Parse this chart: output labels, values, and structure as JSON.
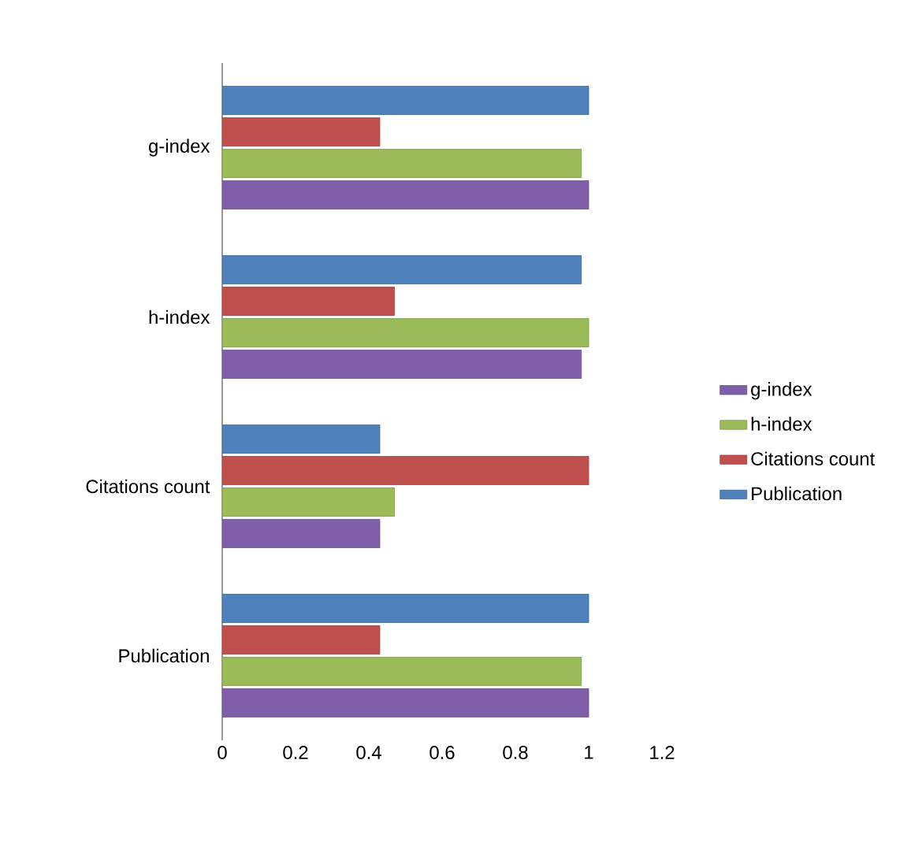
{
  "chart_data": {
    "type": "bar",
    "orientation": "horizontal",
    "categories": [
      "g-index",
      "h-index",
      "Citations count",
      "Publication"
    ],
    "series": [
      {
        "name": "g-index",
        "color": "#7f60a8",
        "values": [
          1,
          0.98,
          0.43,
          1
        ]
      },
      {
        "name": "h-index",
        "color": "#9bbb59",
        "values": [
          0.98,
          1,
          0.47,
          0.98
        ]
      },
      {
        "name": "Citations count",
        "color": "#c0504d",
        "values": [
          0.43,
          0.47,
          1,
          0.43
        ]
      },
      {
        "name": "Publication",
        "color": "#4f81bd",
        "values": [
          1,
          0.98,
          0.43,
          1
        ]
      }
    ],
    "xlim": [
      0,
      1.2
    ],
    "xticks": [
      0,
      0.2,
      0.4,
      0.6,
      0.8,
      1,
      1.2
    ],
    "grid": false,
    "legend": "right"
  }
}
